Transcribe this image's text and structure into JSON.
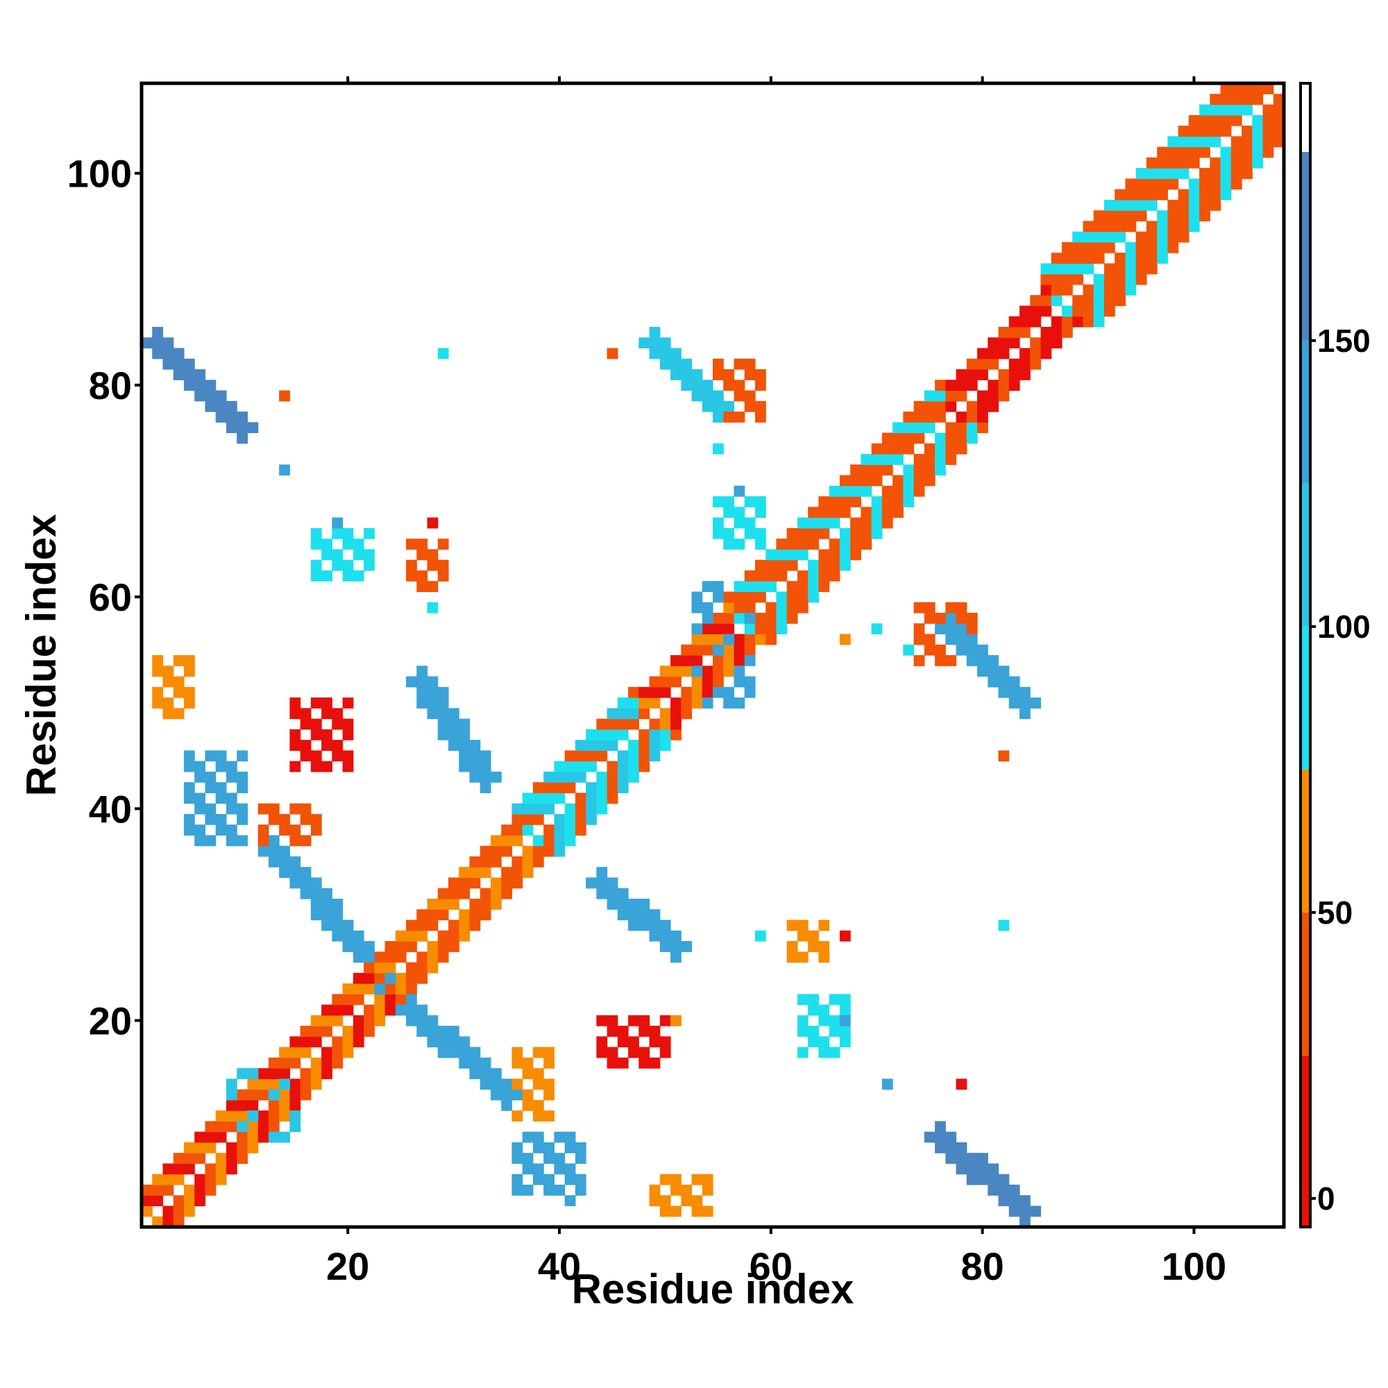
{
  "chart_data": {
    "type": "heatmap",
    "xlabel": "Residue index",
    "ylabel": "Residue index",
    "xlim": [
      1,
      108
    ],
    "ylim": [
      1,
      108
    ],
    "x_ticks": [
      20,
      40,
      60,
      80,
      100
    ],
    "y_ticks": [
      20,
      40,
      60,
      80,
      100
    ],
    "colorbar": {
      "range": [
        -5,
        195
      ],
      "ticks": [
        0,
        50,
        100,
        150
      ],
      "bands": [
        {
          "from": -5,
          "to": 25,
          "color": "#e8100a"
        },
        {
          "from": 25,
          "to": 50,
          "color": "#f25306"
        },
        {
          "from": 50,
          "to": 75,
          "color": "#f88c00"
        },
        {
          "from": 75,
          "to": 100,
          "color": "#1de0ee"
        },
        {
          "from": 100,
          "to": 125,
          "color": "#2ac6e6"
        },
        {
          "from": 125,
          "to": 150,
          "color": "#3aa3d8"
        },
        {
          "from": 150,
          "to": 183,
          "color": "#4a86c2"
        },
        {
          "from": 183,
          "to": 195,
          "color": "#ffffff"
        }
      ]
    },
    "diagonal_bands": [
      {
        "from": 1,
        "to": 22,
        "colors": [
          "#e8100a",
          "#f25306",
          "#f88c00"
        ],
        "width": 3
      },
      {
        "from": 22,
        "to": 36,
        "colors": [
          "#f25306",
          "#f88c00",
          "#f25306"
        ],
        "width": 3
      },
      {
        "from": 36,
        "to": 47,
        "colors": [
          "#f25306",
          "#2ac6e6",
          "#1de0ee"
        ],
        "width": 4
      },
      {
        "from": 47,
        "to": 56,
        "colors": [
          "#e8100a",
          "#f25306",
          "#f88c00"
        ],
        "width": 3
      },
      {
        "from": 56,
        "to": 76,
        "colors": [
          "#f25306",
          "#1de0ee",
          "#f25306"
        ],
        "width": 4
      },
      {
        "from": 76,
        "to": 86,
        "colors": [
          "#e8100a",
          "#f25306",
          "#e8100a"
        ],
        "width": 3
      },
      {
        "from": 86,
        "to": 108,
        "colors": [
          "#f25306",
          "#1de0ee",
          "#f25306"
        ],
        "width": 5
      }
    ],
    "blocks": [
      {
        "x": [
          2,
          10
        ],
        "y": [
          76,
          84
        ],
        "anti": true,
        "color": "#4a86c2"
      },
      {
        "x": [
          49,
          55
        ],
        "y": [
          78,
          84
        ],
        "anti": true,
        "color": "#2ac6e6"
      },
      {
        "x": [
          53,
          58
        ],
        "y": [
          50,
          61
        ],
        "anti": false,
        "color": "#3aa3d8"
      },
      {
        "x": [
          77,
          84
        ],
        "y": [
          50,
          57
        ],
        "anti": true,
        "color": "#3aa3d8"
      },
      {
        "x": [
          76,
          84
        ],
        "y": [
          2,
          9
        ],
        "anti": true,
        "color": "#4a86c2"
      },
      {
        "x": [
          13,
          23
        ],
        "y": [
          25,
          36
        ],
        "anti": true,
        "color": "#3aa3d8"
      },
      {
        "x": [
          24,
          35
        ],
        "y": [
          13,
          23
        ],
        "anti": true,
        "color": "#3aa3d8"
      },
      {
        "x": [
          27,
          33
        ],
        "y": [
          43,
          52
        ],
        "anti": true,
        "color": "#3aa3d8"
      },
      {
        "x": [
          44,
          51
        ],
        "y": [
          27,
          33
        ],
        "anti": true,
        "color": "#3aa3d8"
      },
      {
        "x": [
          9,
          15
        ],
        "y": [
          9,
          15
        ],
        "anti": false,
        "color": "#2ac6e6"
      },
      {
        "x": [
          2,
          5
        ],
        "y": [
          49,
          54
        ],
        "anti": false,
        "color": "#f88c00"
      },
      {
        "x": [
          15,
          20
        ],
        "y": [
          44,
          50
        ],
        "anti": false,
        "color": "#e8100a"
      },
      {
        "x": [
          12,
          17
        ],
        "y": [
          37,
          40
        ],
        "anti": false,
        "color": "#f25306"
      },
      {
        "x": [
          5,
          10
        ],
        "y": [
          37,
          45
        ],
        "anti": false,
        "color": "#3aa3d8"
      },
      {
        "x": [
          17,
          22
        ],
        "y": [
          62,
          66
        ],
        "anti": false,
        "color": "#1de0ee"
      },
      {
        "x": [
          26,
          29
        ],
        "y": [
          61,
          65
        ],
        "anti": false,
        "color": "#f25306"
      },
      {
        "x": [
          55,
          59
        ],
        "y": [
          65,
          69
        ],
        "anti": false,
        "color": "#1de0ee"
      },
      {
        "x": [
          55,
          59
        ],
        "y": [
          77,
          82
        ],
        "anti": false,
        "color": "#f25306"
      },
      {
        "x": [
          74,
          79
        ],
        "y": [
          54,
          59
        ],
        "anti": false,
        "color": "#f25306"
      },
      {
        "x": [
          36,
          39
        ],
        "y": [
          11,
          17
        ],
        "anti": false,
        "color": "#f88c00"
      },
      {
        "x": [
          36,
          42
        ],
        "y": [
          4,
          9
        ],
        "anti": false,
        "color": "#3aa3d8"
      },
      {
        "x": [
          44,
          50
        ],
        "y": [
          16,
          20
        ],
        "anti": false,
        "color": "#e8100a"
      },
      {
        "x": [
          49,
          54
        ],
        "y": [
          2,
          5
        ],
        "anti": false,
        "color": "#f88c00"
      },
      {
        "x": [
          62,
          65
        ],
        "y": [
          26,
          29
        ],
        "anti": false,
        "color": "#f88c00"
      },
      {
        "x": [
          63,
          67
        ],
        "y": [
          17,
          22
        ],
        "anti": false,
        "color": "#1de0ee"
      }
    ],
    "dots": [
      {
        "x": 29,
        "y": 83,
        "color": "#1de0ee"
      },
      {
        "x": 45,
        "y": 83,
        "color": "#f25306"
      },
      {
        "x": 14,
        "y": 79,
        "color": "#f25306"
      },
      {
        "x": 14,
        "y": 72,
        "color": "#3aa3d8"
      },
      {
        "x": 19,
        "y": 67,
        "color": "#3aa3d8"
      },
      {
        "x": 28,
        "y": 67,
        "color": "#e8100a"
      },
      {
        "x": 28,
        "y": 59,
        "color": "#1de0ee"
      },
      {
        "x": 55,
        "y": 74,
        "color": "#1de0ee"
      },
      {
        "x": 57,
        "y": 70,
        "color": "#3aa3d8"
      },
      {
        "x": 67,
        "y": 56,
        "color": "#f88c00"
      },
      {
        "x": 70,
        "y": 57,
        "color": "#1de0ee"
      },
      {
        "x": 73,
        "y": 55,
        "color": "#1de0ee"
      },
      {
        "x": 82,
        "y": 45,
        "color": "#f25306"
      },
      {
        "x": 82,
        "y": 29,
        "color": "#1de0ee"
      },
      {
        "x": 59,
        "y": 28,
        "color": "#1de0ee"
      },
      {
        "x": 67,
        "y": 28,
        "color": "#e8100a"
      },
      {
        "x": 67,
        "y": 20,
        "color": "#3aa3d8"
      },
      {
        "x": 71,
        "y": 14,
        "color": "#3aa3d8"
      },
      {
        "x": 78,
        "y": 14,
        "color": "#e8100a"
      },
      {
        "x": 5,
        "y": 45,
        "color": "#1de0ee"
      },
      {
        "x": 51,
        "y": 20,
        "color": "#f88c00"
      },
      {
        "x": 54,
        "y": 5,
        "color": "#f25306"
      },
      {
        "x": 41,
        "y": 3,
        "color": "#3aa3d8"
      }
    ]
  }
}
